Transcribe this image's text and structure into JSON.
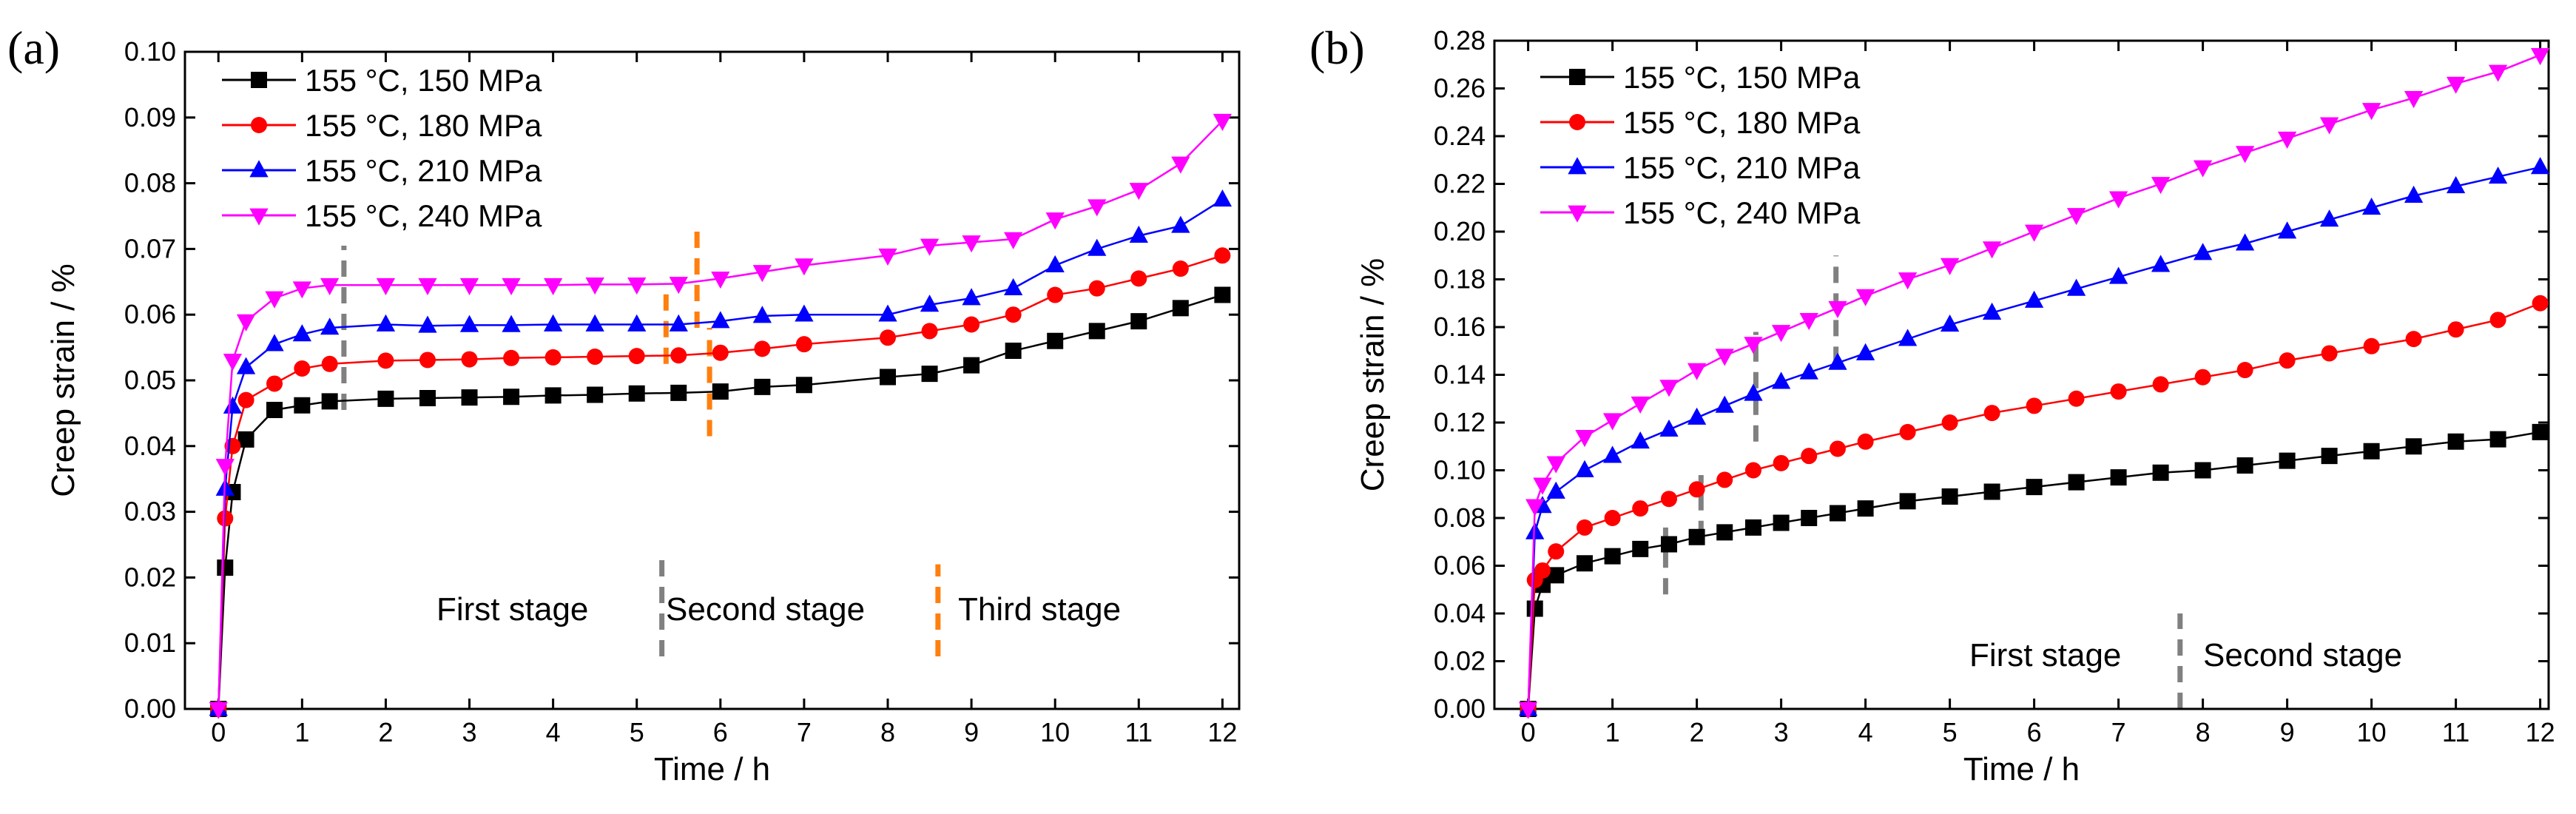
{
  "panels": [
    {
      "label": "(a)",
      "stage_labels": [
        "First stage",
        "Second stage",
        "Third stage"
      ]
    },
    {
      "label": "(b)",
      "stage_labels": [
        "First stage",
        "Second stage"
      ]
    }
  ],
  "colors": {
    "series": [
      "#000000",
      "#ff0000",
      "#0000ff",
      "#ff00ff"
    ],
    "stage_dash_gray": "#808080",
    "stage_dash_orange": "#ff7f0e"
  },
  "chart_data": [
    {
      "type": "line",
      "title": "",
      "xlabel": "Time / h",
      "ylabel": "Creep strain / %",
      "xlim": [
        -0.4,
        12.2
      ],
      "ylim": [
        0,
        0.1
      ],
      "xticks": [
        0,
        1,
        2,
        3,
        4,
        5,
        6,
        7,
        8,
        9,
        10,
        11,
        12
      ],
      "yticks": [
        "0.00",
        "0.01",
        "0.02",
        "0.03",
        "0.04",
        "0.05",
        "0.06",
        "0.07",
        "0.08",
        "0.09",
        "0.10"
      ],
      "legend_position": "top-left",
      "x": [
        0,
        0.08,
        0.17,
        0.33,
        0.67,
        1,
        1.33,
        2,
        2.5,
        3,
        3.5,
        4,
        4.5,
        5,
        5.5,
        6,
        6.5,
        7,
        8,
        8.5,
        9,
        9.5,
        10,
        10.5,
        11,
        11.5,
        12
      ],
      "series": [
        {
          "name": "155 °C, 150 MPa",
          "marker": "square",
          "values": [
            0,
            0.0215,
            0.033,
            0.041,
            0.0455,
            0.0462,
            0.0468,
            0.0472,
            0.0473,
            0.0474,
            0.0475,
            0.0477,
            0.0478,
            0.048,
            0.0481,
            0.0483,
            0.049,
            0.0493,
            0.0505,
            0.051,
            0.0523,
            0.0545,
            0.056,
            0.0575,
            0.059,
            0.061,
            0.063
          ]
        },
        {
          "name": "155 °C, 180 MPa",
          "marker": "circle",
          "values": [
            0,
            0.029,
            0.04,
            0.047,
            0.0495,
            0.0518,
            0.0525,
            0.053,
            0.0531,
            0.0532,
            0.0534,
            0.0535,
            0.0536,
            0.0537,
            0.0538,
            0.0542,
            0.0548,
            0.0555,
            0.0565,
            0.0575,
            0.0585,
            0.06,
            0.063,
            0.064,
            0.0655,
            0.067,
            0.069
          ]
        },
        {
          "name": "155 °C, 210 MPa",
          "marker": "triangle-up",
          "values": [
            0,
            0.0335,
            0.046,
            0.052,
            0.0555,
            0.057,
            0.058,
            0.0585,
            0.0583,
            0.0584,
            0.0584,
            0.0585,
            0.0585,
            0.0585,
            0.0585,
            0.059,
            0.0598,
            0.06,
            0.06,
            0.0615,
            0.0625,
            0.064,
            0.0675,
            0.07,
            0.072,
            0.0735,
            0.0775
          ]
        },
        {
          "name": "155 °C, 240 MPa",
          "marker": "triangle-down",
          "values": [
            0,
            0.037,
            0.053,
            0.059,
            0.0625,
            0.064,
            0.0645,
            0.0645,
            0.0645,
            0.0645,
            0.0645,
            0.0645,
            0.0646,
            0.0646,
            0.0647,
            0.0655,
            0.0665,
            0.0675,
            0.069,
            0.0705,
            0.071,
            0.0715,
            0.0745,
            0.0765,
            0.079,
            0.083,
            0.0895
          ]
        }
      ]
    },
    {
      "type": "line",
      "title": "",
      "xlabel": "Time / h",
      "ylabel": "Creep strain / %",
      "xlim": [
        -0.4,
        12.1
      ],
      "ylim": [
        0,
        0.28
      ],
      "xticks": [
        0,
        1,
        2,
        3,
        4,
        5,
        6,
        7,
        8,
        9,
        10,
        11,
        12
      ],
      "yticks": [
        "0.00",
        "0.02",
        "0.04",
        "0.06",
        "0.08",
        "0.10",
        "0.12",
        "0.14",
        "0.16",
        "0.18",
        "0.20",
        "0.22",
        "0.24",
        "0.26",
        "0.28"
      ],
      "legend_position": "top-left",
      "x": [
        0,
        0.08,
        0.17,
        0.33,
        0.67,
        1,
        1.33,
        1.67,
        2,
        2.33,
        2.67,
        3,
        3.33,
        3.67,
        4,
        4.5,
        5,
        5.5,
        6,
        6.5,
        7,
        7.5,
        8,
        8.5,
        9,
        9.5,
        10,
        10.5,
        11,
        11.5,
        12
      ],
      "series": [
        {
          "name": "155 °C, 150 MPa",
          "marker": "square",
          "values": [
            0,
            0.042,
            0.052,
            0.056,
            0.061,
            0.064,
            0.067,
            0.069,
            0.072,
            0.074,
            0.076,
            0.078,
            0.08,
            0.082,
            0.084,
            0.087,
            0.089,
            0.091,
            0.093,
            0.095,
            0.097,
            0.099,
            0.1,
            0.102,
            0.104,
            0.106,
            0.108,
            0.11,
            0.112,
            0.113,
            0.116
          ]
        },
        {
          "name": "155 °C, 180 MPa",
          "marker": "circle",
          "values": [
            0,
            0.054,
            0.058,
            0.066,
            0.076,
            0.08,
            0.084,
            0.088,
            0.092,
            0.096,
            0.1,
            0.103,
            0.106,
            0.109,
            0.112,
            0.116,
            0.12,
            0.124,
            0.127,
            0.13,
            0.133,
            0.136,
            0.139,
            0.142,
            0.146,
            0.149,
            0.152,
            0.155,
            0.159,
            0.163,
            0.17
          ]
        },
        {
          "name": "155 °C, 210 MPa",
          "marker": "triangle-up",
          "values": [
            0,
            0.074,
            0.085,
            0.091,
            0.1,
            0.106,
            0.112,
            0.117,
            0.122,
            0.127,
            0.132,
            0.137,
            0.141,
            0.145,
            0.149,
            0.155,
            0.161,
            0.166,
            0.171,
            0.176,
            0.181,
            0.186,
            0.191,
            0.195,
            0.2,
            0.205,
            0.21,
            0.215,
            0.219,
            0.223,
            0.227
          ]
        },
        {
          "name": "155 °C, 240 MPa",
          "marker": "triangle-down",
          "values": [
            0,
            0.085,
            0.094,
            0.103,
            0.114,
            0.121,
            0.128,
            0.135,
            0.142,
            0.148,
            0.153,
            0.158,
            0.163,
            0.168,
            0.173,
            0.18,
            0.186,
            0.193,
            0.2,
            0.207,
            0.214,
            0.22,
            0.227,
            0.233,
            0.239,
            0.245,
            0.251,
            0.256,
            0.262,
            0.267,
            0.274
          ]
        }
      ]
    }
  ]
}
